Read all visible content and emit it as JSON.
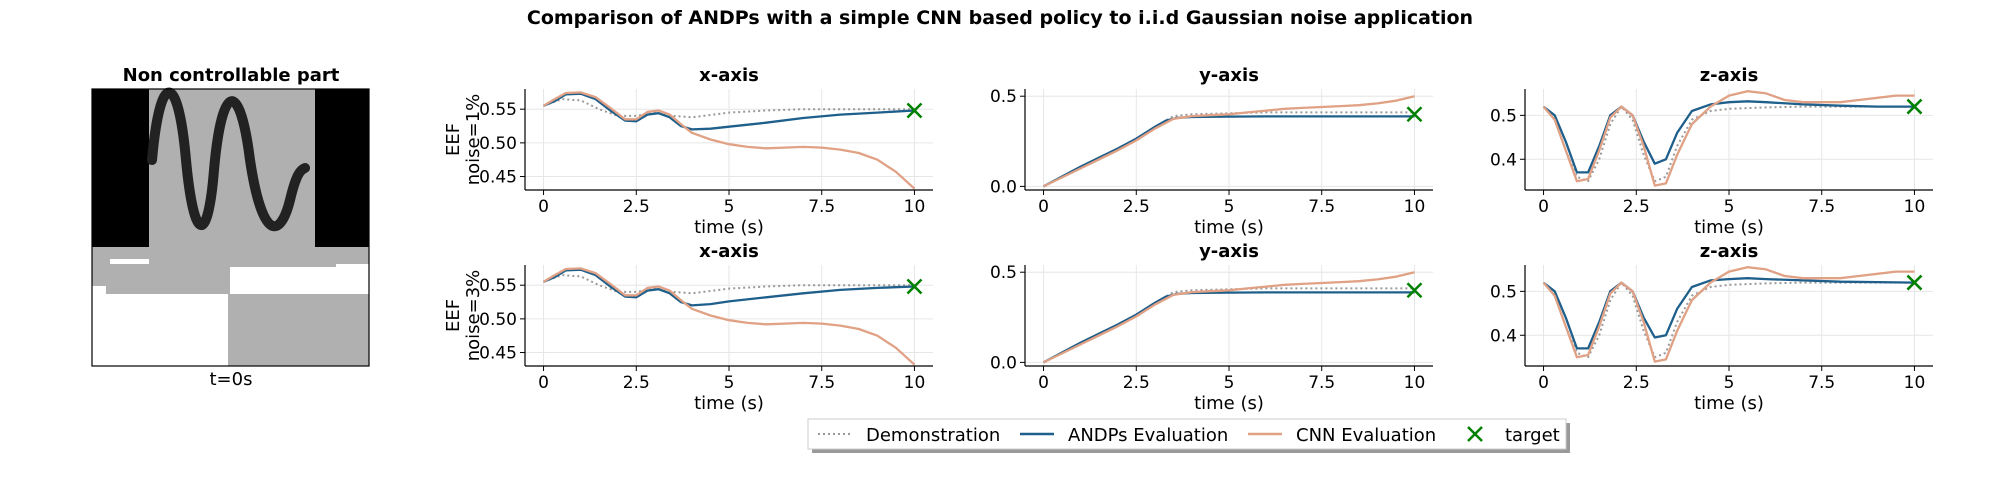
{
  "figure": {
    "title": "Comparison of ANDPs with a simple CNN based policy to i.i.d Gaussian noise application"
  },
  "image_panel": {
    "title": "Non controllable part",
    "caption": "t=0s"
  },
  "colors": {
    "demonstration": "#999999",
    "andps": "#1f5f8b",
    "cnn": "#e0a184",
    "target": "#008000",
    "grid": "#e6e6e6"
  },
  "legend": {
    "demonstration": "Demonstration",
    "andps": "ANDPs Evaluation",
    "cnn": "CNN Evaluation",
    "target": "target"
  },
  "chart_data": [
    {
      "type": "line",
      "title": "x-axis",
      "xlabel": "time (s)",
      "ylabel": "EEF\nnoise=1%",
      "xlim": [
        -0.5,
        10.5
      ],
      "ylim": [
        0.43,
        0.58
      ],
      "xticks": [
        0,
        2.5,
        5,
        7.5,
        10
      ],
      "xtick_labels": [
        "0",
        "2.5",
        "5",
        "7.5",
        "10"
      ],
      "yticks": [
        0.45,
        0.5,
        0.55
      ],
      "ytick_labels": [
        "0.45",
        "0.50",
        "0.55"
      ],
      "target": [
        10,
        0.548
      ],
      "series": [
        {
          "name": "Demonstration",
          "x": [
            0,
            0.5,
            1,
            1.5,
            2,
            2.5,
            3,
            3.5,
            4,
            5,
            6,
            7,
            8,
            9,
            10
          ],
          "y": [
            0.555,
            0.565,
            0.563,
            0.55,
            0.54,
            0.54,
            0.545,
            0.54,
            0.538,
            0.545,
            0.548,
            0.55,
            0.55,
            0.55,
            0.55
          ]
        },
        {
          "name": "ANDPs Evaluation",
          "x": [
            0,
            0.3,
            0.6,
            1,
            1.4,
            1.8,
            2.2,
            2.5,
            2.8,
            3.1,
            3.4,
            3.7,
            4,
            4.5,
            5,
            6,
            7,
            8,
            9,
            10
          ],
          "y": [
            0.555,
            0.562,
            0.572,
            0.573,
            0.565,
            0.548,
            0.533,
            0.532,
            0.542,
            0.544,
            0.538,
            0.525,
            0.52,
            0.521,
            0.524,
            0.53,
            0.537,
            0.542,
            0.545,
            0.548
          ]
        },
        {
          "name": "CNN Evaluation",
          "x": [
            0,
            0.3,
            0.6,
            1,
            1.4,
            1.8,
            2.2,
            2.5,
            2.8,
            3.1,
            3.4,
            3.7,
            4,
            4.5,
            5,
            5.5,
            6,
            6.5,
            7,
            7.5,
            8,
            8.5,
            9,
            9.5,
            10
          ],
          "y": [
            0.555,
            0.565,
            0.574,
            0.575,
            0.568,
            0.552,
            0.535,
            0.535,
            0.546,
            0.548,
            0.542,
            0.528,
            0.515,
            0.505,
            0.498,
            0.494,
            0.492,
            0.493,
            0.494,
            0.493,
            0.49,
            0.485,
            0.475,
            0.457,
            0.432
          ]
        }
      ]
    },
    {
      "type": "line",
      "title": "y-axis",
      "xlabel": "time (s)",
      "ylabel": "",
      "xlim": [
        -0.5,
        10.5
      ],
      "ylim": [
        -0.02,
        0.54
      ],
      "xticks": [
        0,
        2.5,
        5,
        7.5,
        10
      ],
      "xtick_labels": [
        "0",
        "2.5",
        "5",
        "7.5",
        "10"
      ],
      "yticks": [
        0,
        0.5
      ],
      "ytick_labels": [
        "0.0",
        "0.5"
      ],
      "target": [
        10,
        0.4
      ],
      "series": [
        {
          "name": "Demonstration",
          "x": [
            0,
            0.5,
            1,
            1.5,
            2,
            2.5,
            3,
            3.5,
            4,
            5,
            6,
            7,
            8,
            9,
            10
          ],
          "y": [
            0,
            0.05,
            0.1,
            0.15,
            0.2,
            0.26,
            0.33,
            0.39,
            0.4,
            0.405,
            0.41,
            0.41,
            0.41,
            0.41,
            0.41
          ]
        },
        {
          "name": "ANDPs Evaluation",
          "x": [
            0,
            0.5,
            1,
            1.5,
            2,
            2.5,
            3,
            3.3,
            3.6,
            4,
            5,
            6,
            7,
            8,
            9,
            10
          ],
          "y": [
            0,
            0.055,
            0.11,
            0.16,
            0.21,
            0.265,
            0.33,
            0.365,
            0.38,
            0.385,
            0.387,
            0.388,
            0.388,
            0.388,
            0.388,
            0.388
          ]
        },
        {
          "name": "CNN Evaluation",
          "x": [
            0,
            0.5,
            1,
            1.5,
            2,
            2.5,
            3,
            3.5,
            4,
            4.5,
            5,
            5.5,
            6,
            6.5,
            7,
            7.5,
            8,
            8.5,
            9,
            9.5,
            10
          ],
          "y": [
            0,
            0.05,
            0.1,
            0.15,
            0.2,
            0.255,
            0.32,
            0.375,
            0.39,
            0.395,
            0.4,
            0.41,
            0.42,
            0.43,
            0.435,
            0.44,
            0.445,
            0.45,
            0.46,
            0.475,
            0.5
          ]
        }
      ]
    },
    {
      "type": "line",
      "title": "z-axis",
      "xlabel": "time (s)",
      "ylabel": "",
      "xlim": [
        -0.5,
        10.5
      ],
      "ylim": [
        0.33,
        0.56
      ],
      "xticks": [
        0,
        2.5,
        5,
        7.5,
        10
      ],
      "xtick_labels": [
        "0",
        "2.5",
        "5",
        "7.5",
        "10"
      ],
      "yticks": [
        0.4,
        0.5
      ],
      "ytick_labels": [
        "0.4",
        "0.5"
      ],
      "target": [
        10,
        0.52
      ],
      "series": [
        {
          "name": "Demonstration",
          "x": [
            0,
            0.3,
            0.6,
            0.9,
            1.2,
            1.5,
            1.8,
            2.1,
            2.4,
            2.7,
            3,
            3.3,
            3.6,
            4,
            4.5,
            5,
            6,
            7,
            8,
            9,
            10
          ],
          "y": [
            0.52,
            0.49,
            0.42,
            0.36,
            0.35,
            0.4,
            0.48,
            0.52,
            0.49,
            0.41,
            0.35,
            0.36,
            0.43,
            0.49,
            0.51,
            0.515,
            0.518,
            0.52,
            0.52,
            0.52,
            0.52
          ]
        },
        {
          "name": "ANDPs Evaluation",
          "x": [
            0,
            0.3,
            0.6,
            0.9,
            1.2,
            1.5,
            1.8,
            2.1,
            2.4,
            2.7,
            3,
            3.3,
            3.6,
            4,
            4.5,
            5,
            5.5,
            6,
            7,
            8,
            9,
            10
          ],
          "y": [
            0.52,
            0.5,
            0.44,
            0.37,
            0.37,
            0.43,
            0.5,
            0.52,
            0.5,
            0.44,
            0.39,
            0.4,
            0.46,
            0.51,
            0.525,
            0.53,
            0.532,
            0.53,
            0.525,
            0.522,
            0.52,
            0.52
          ]
        },
        {
          "name": "CNN Evaluation",
          "x": [
            0,
            0.3,
            0.6,
            0.9,
            1.2,
            1.5,
            1.8,
            2.1,
            2.4,
            2.7,
            3,
            3.3,
            3.6,
            4,
            4.5,
            5,
            5.5,
            6,
            6.5,
            7,
            7.5,
            8,
            8.5,
            9,
            9.5,
            10
          ],
          "y": [
            0.52,
            0.49,
            0.42,
            0.35,
            0.355,
            0.42,
            0.495,
            0.52,
            0.5,
            0.43,
            0.34,
            0.345,
            0.41,
            0.48,
            0.52,
            0.545,
            0.555,
            0.55,
            0.535,
            0.53,
            0.53,
            0.53,
            0.535,
            0.54,
            0.545,
            0.545
          ]
        }
      ]
    },
    {
      "type": "line",
      "title": "x-axis",
      "xlabel": "time (s)",
      "ylabel": "EEF\nnoise=3%",
      "xlim": [
        -0.5,
        10.5
      ],
      "ylim": [
        0.43,
        0.58
      ],
      "xticks": [
        0,
        2.5,
        5,
        7.5,
        10
      ],
      "xtick_labels": [
        "0",
        "2.5",
        "5",
        "7.5",
        "10"
      ],
      "yticks": [
        0.45,
        0.5,
        0.55
      ],
      "ytick_labels": [
        "0.45",
        "0.50",
        "0.55"
      ],
      "target": [
        10,
        0.548
      ],
      "series": [
        {
          "name": "Demonstration",
          "x": [
            0,
            0.5,
            1,
            1.5,
            2,
            2.5,
            3,
            3.5,
            4,
            5,
            6,
            7,
            8,
            9,
            10
          ],
          "y": [
            0.555,
            0.565,
            0.563,
            0.55,
            0.54,
            0.54,
            0.545,
            0.54,
            0.538,
            0.545,
            0.548,
            0.55,
            0.55,
            0.55,
            0.55
          ]
        },
        {
          "name": "ANDPs Evaluation",
          "x": [
            0,
            0.3,
            0.6,
            1,
            1.4,
            1.8,
            2.2,
            2.5,
            2.8,
            3.1,
            3.4,
            3.7,
            4,
            4.5,
            5,
            6,
            7,
            8,
            9,
            10
          ],
          "y": [
            0.555,
            0.562,
            0.572,
            0.573,
            0.565,
            0.548,
            0.533,
            0.532,
            0.542,
            0.544,
            0.538,
            0.525,
            0.52,
            0.522,
            0.526,
            0.532,
            0.538,
            0.543,
            0.546,
            0.548
          ]
        },
        {
          "name": "CNN Evaluation",
          "x": [
            0,
            0.3,
            0.6,
            1,
            1.4,
            1.8,
            2.2,
            2.5,
            2.8,
            3.1,
            3.4,
            3.7,
            4,
            4.5,
            5,
            5.5,
            6,
            6.5,
            7,
            7.5,
            8,
            8.5,
            9,
            9.5,
            10
          ],
          "y": [
            0.555,
            0.565,
            0.574,
            0.575,
            0.568,
            0.552,
            0.535,
            0.535,
            0.546,
            0.548,
            0.542,
            0.528,
            0.515,
            0.505,
            0.498,
            0.494,
            0.492,
            0.493,
            0.494,
            0.493,
            0.49,
            0.485,
            0.475,
            0.457,
            0.432
          ]
        }
      ]
    },
    {
      "type": "line",
      "title": "y-axis",
      "xlabel": "time (s)",
      "ylabel": "",
      "xlim": [
        -0.5,
        10.5
      ],
      "ylim": [
        -0.02,
        0.54
      ],
      "xticks": [
        0,
        2.5,
        5,
        7.5,
        10
      ],
      "xtick_labels": [
        "0",
        "2.5",
        "5",
        "7.5",
        "10"
      ],
      "yticks": [
        0,
        0.5
      ],
      "ytick_labels": [
        "0.0",
        "0.5"
      ],
      "target": [
        10,
        0.4
      ],
      "series": [
        {
          "name": "Demonstration",
          "x": [
            0,
            0.5,
            1,
            1.5,
            2,
            2.5,
            3,
            3.5,
            4,
            5,
            6,
            7,
            8,
            9,
            10
          ],
          "y": [
            0,
            0.05,
            0.1,
            0.15,
            0.2,
            0.26,
            0.33,
            0.39,
            0.4,
            0.405,
            0.41,
            0.41,
            0.41,
            0.41,
            0.41
          ]
        },
        {
          "name": "ANDPs Evaluation",
          "x": [
            0,
            0.5,
            1,
            1.5,
            2,
            2.5,
            3,
            3.3,
            3.6,
            4,
            5,
            6,
            7,
            8,
            9,
            10
          ],
          "y": [
            0,
            0.055,
            0.11,
            0.16,
            0.21,
            0.265,
            0.33,
            0.365,
            0.38,
            0.385,
            0.387,
            0.388,
            0.388,
            0.388,
            0.388,
            0.388
          ]
        },
        {
          "name": "CNN Evaluation",
          "x": [
            0,
            0.5,
            1,
            1.5,
            2,
            2.5,
            3,
            3.5,
            4,
            4.5,
            5,
            5.5,
            6,
            6.5,
            7,
            7.5,
            8,
            8.5,
            9,
            9.5,
            10
          ],
          "y": [
            0,
            0.05,
            0.1,
            0.15,
            0.2,
            0.255,
            0.32,
            0.375,
            0.39,
            0.395,
            0.4,
            0.41,
            0.42,
            0.43,
            0.435,
            0.44,
            0.445,
            0.45,
            0.46,
            0.475,
            0.5
          ]
        }
      ]
    },
    {
      "type": "line",
      "title": "z-axis",
      "xlabel": "time (s)",
      "ylabel": "",
      "xlim": [
        -0.5,
        10.5
      ],
      "ylim": [
        0.33,
        0.56
      ],
      "xticks": [
        0,
        2.5,
        5,
        7.5,
        10
      ],
      "xtick_labels": [
        "0",
        "2.5",
        "5",
        "7.5",
        "10"
      ],
      "yticks": [
        0.4,
        0.5
      ],
      "ytick_labels": [
        "0.4",
        "0.5"
      ],
      "target": [
        10,
        0.52
      ],
      "series": [
        {
          "name": "Demonstration",
          "x": [
            0,
            0.3,
            0.6,
            0.9,
            1.2,
            1.5,
            1.8,
            2.1,
            2.4,
            2.7,
            3,
            3.3,
            3.6,
            4,
            4.5,
            5,
            6,
            7,
            8,
            9,
            10
          ],
          "y": [
            0.52,
            0.49,
            0.42,
            0.36,
            0.35,
            0.4,
            0.48,
            0.52,
            0.49,
            0.41,
            0.35,
            0.36,
            0.43,
            0.49,
            0.51,
            0.515,
            0.518,
            0.52,
            0.52,
            0.52,
            0.52
          ]
        },
        {
          "name": "ANDPs Evaluation",
          "x": [
            0,
            0.3,
            0.6,
            0.9,
            1.2,
            1.5,
            1.8,
            2.1,
            2.4,
            2.7,
            3,
            3.3,
            3.6,
            4,
            4.5,
            5,
            5.5,
            6,
            7,
            8,
            9,
            10
          ],
          "y": [
            0.52,
            0.5,
            0.44,
            0.37,
            0.37,
            0.43,
            0.5,
            0.52,
            0.5,
            0.44,
            0.395,
            0.4,
            0.46,
            0.51,
            0.525,
            0.528,
            0.53,
            0.528,
            0.525,
            0.522,
            0.521,
            0.52
          ]
        },
        {
          "name": "CNN Evaluation",
          "x": [
            0,
            0.3,
            0.6,
            0.9,
            1.2,
            1.5,
            1.8,
            2.1,
            2.4,
            2.7,
            3,
            3.3,
            3.6,
            4,
            4.5,
            5,
            5.5,
            6,
            6.5,
            7,
            7.5,
            8,
            8.5,
            9,
            9.5,
            10
          ],
          "y": [
            0.52,
            0.49,
            0.42,
            0.35,
            0.355,
            0.42,
            0.495,
            0.52,
            0.5,
            0.43,
            0.34,
            0.345,
            0.41,
            0.48,
            0.52,
            0.545,
            0.555,
            0.55,
            0.535,
            0.53,
            0.53,
            0.53,
            0.535,
            0.54,
            0.545,
            0.545
          ]
        }
      ]
    }
  ]
}
